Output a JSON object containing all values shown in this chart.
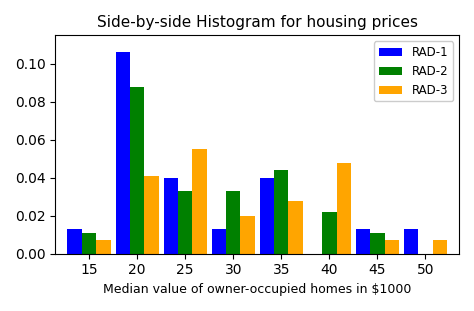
{
  "title": "Side-by-side Histogram for housing prices",
  "xlabel": "Median value of owner-occupied homes in $1000",
  "ylabel": "",
  "bin_centers": [
    15,
    20,
    25,
    30,
    35,
    40,
    45,
    50
  ],
  "rad1": [
    0.013,
    0.106,
    0.04,
    0.013,
    0.04,
    0.0,
    0.013,
    0.013
  ],
  "rad2": [
    0.011,
    0.088,
    0.033,
    0.033,
    0.044,
    0.022,
    0.011,
    0.0
  ],
  "rad3": [
    0.007,
    0.041,
    0.055,
    0.02,
    0.028,
    0.048,
    0.007,
    0.007
  ],
  "colors": [
    "blue",
    "green",
    "orange"
  ],
  "labels": [
    "RAD-1",
    "RAD-2",
    "RAD-3"
  ],
  "ylim": [
    0,
    0.115
  ],
  "yticks": [
    0.0,
    0.02,
    0.04,
    0.06,
    0.08,
    0.1
  ],
  "xticks": [
    15,
    20,
    25,
    30,
    35,
    40,
    45,
    50
  ],
  "bar_width": 1.5,
  "figsize": [
    4.74,
    3.11
  ],
  "dpi": 100
}
